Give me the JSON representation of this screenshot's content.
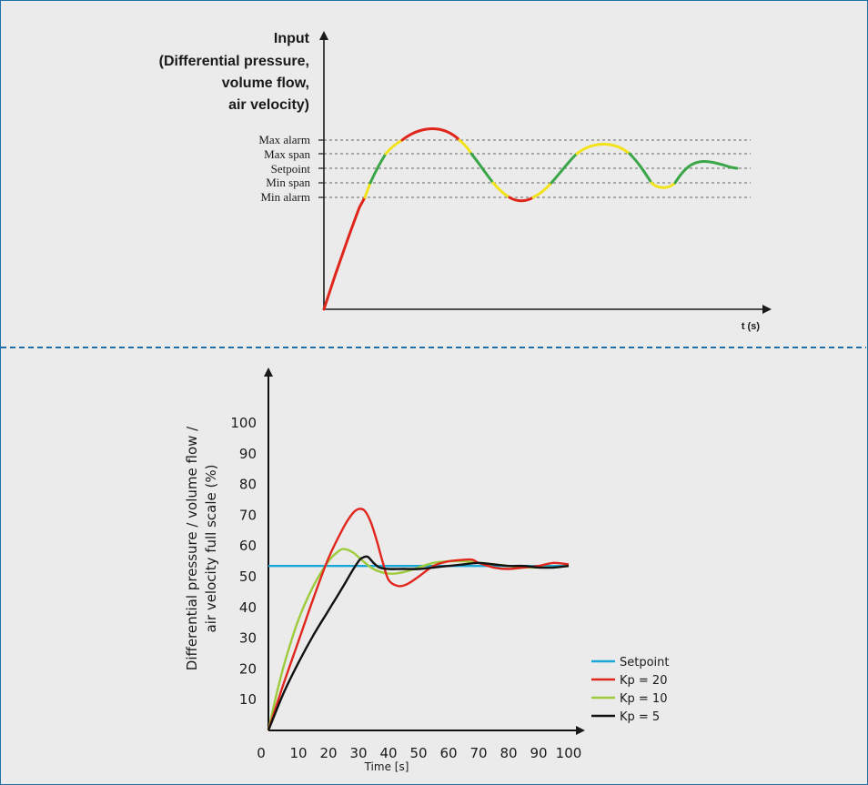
{
  "top_chart": {
    "ylabel_lines": [
      "Input",
      "(Differential pressure,",
      "volume flow,",
      "air velocity)"
    ],
    "xlabel": "t (s)",
    "levels": [
      {
        "name": "Max alarm",
        "color": "#d9261c"
      },
      {
        "name": "Max span",
        "color": "#f2e21a"
      },
      {
        "name": "Setpoint",
        "color": "#3aa648"
      },
      {
        "name": "Min span",
        "color": "#f2e21a"
      },
      {
        "name": "Min alarm",
        "color": "#d9261c"
      }
    ],
    "zone_colors": {
      "alarm": "#e0251b",
      "span_warning": "#f2e21a",
      "ok": "#3aa648"
    }
  },
  "chart_data": {
    "type": "line",
    "title": "",
    "xlabel": "Time  [s]",
    "ylabel": "Differential pressure / volume flow / air velocity full scale (%)",
    "xlim": [
      0,
      100
    ],
    "ylim": [
      0,
      100
    ],
    "x_ticks": [
      "0",
      "10",
      "20",
      "30",
      "40",
      "50",
      "60",
      "70",
      "80",
      "90",
      "100"
    ],
    "y_ticks": [
      "10",
      "20",
      "30",
      "40",
      "50",
      "60",
      "70",
      "80",
      "90",
      "100"
    ],
    "legend_position": "right",
    "series": [
      {
        "name": "Setpoint",
        "color": "#1aa7d8",
        "x": [
          0,
          100
        ],
        "y": [
          53.5,
          53.5
        ]
      },
      {
        "name": "Kp = 20",
        "color": "#e0261d",
        "x": [
          0,
          5,
          10,
          15,
          20,
          25,
          28,
          30,
          32,
          34,
          36,
          38,
          40,
          43,
          46,
          50,
          55,
          60,
          65,
          68,
          70,
          75,
          80,
          85,
          90,
          95,
          100
        ],
        "y": [
          0,
          15,
          29,
          43,
          56,
          66,
          70.5,
          72,
          71.5,
          68,
          62,
          55,
          49,
          47,
          47.5,
          50,
          53.5,
          55,
          55.5,
          55.5,
          54.5,
          53,
          52.5,
          53,
          53.5,
          54.5,
          54
        ]
      },
      {
        "name": "Kp = 10",
        "color": "#9dcb3c",
        "x": [
          0,
          3,
          6,
          10,
          15,
          20,
          23,
          25,
          28,
          31,
          35,
          40,
          45,
          50,
          55,
          60,
          65,
          70,
          75,
          80,
          85,
          90,
          95,
          100
        ],
        "y": [
          0,
          13,
          24,
          36,
          47,
          55,
          58,
          59,
          58,
          55.5,
          52.5,
          51,
          51.5,
          53,
          54.5,
          55,
          55,
          54.5,
          54,
          53.5,
          53,
          53,
          53,
          53.5
        ]
      },
      {
        "name": "Kp = 5",
        "color": "#111111",
        "x": [
          0,
          5,
          10,
          15,
          20,
          25,
          28,
          30,
          31,
          33,
          35,
          37,
          40,
          45,
          50,
          55,
          60,
          65,
          70,
          75,
          80,
          85,
          90,
          95,
          100
        ],
        "y": [
          0,
          12,
          22,
          31,
          39,
          47,
          52,
          55,
          56,
          56.5,
          54.5,
          53,
          52.5,
          52.5,
          52.5,
          53,
          53.5,
          54,
          54.5,
          54,
          53.5,
          53.5,
          53,
          53,
          53.5
        ]
      }
    ]
  }
}
